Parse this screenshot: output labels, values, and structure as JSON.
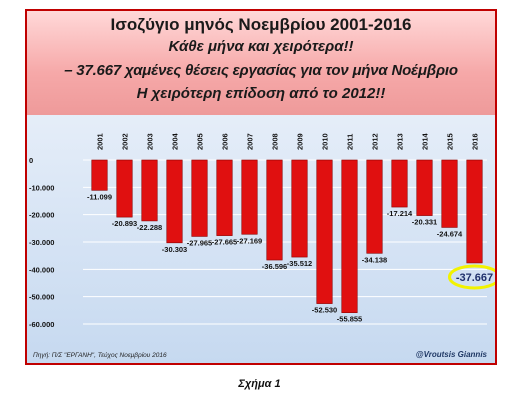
{
  "header": {
    "line1": "Ισοζύγιο μηνός Νοεμβρίου 2001-2016",
    "line2": "Κάθε μήνα και χειρότερα!!",
    "line3": "– 37.667 χαμένες θέσεις εργασίας για τον μήνα Νοέμβριο",
    "line4": "Η χειρότερη επίδοση από το 2012!!"
  },
  "source": "Πηγή: Π/Σ \"ΕΡΓΑΝΗ\", Τεύχος Νοεμβρίου 2016",
  "credit": "@Vroutsis Giannis",
  "caption": "Σχήμα 1",
  "colors": {
    "bar": "#e01010",
    "highlight": "#f2f200",
    "border": "#c00000"
  },
  "chart_data": {
    "type": "bar",
    "categories": [
      "2001",
      "2002",
      "2003",
      "2004",
      "2005",
      "2006",
      "2007",
      "2008",
      "2009",
      "2010",
      "2011",
      "2012",
      "2013",
      "2014",
      "2015",
      "2016"
    ],
    "values": [
      -11099,
      -20893,
      -22288,
      -30303,
      -27965,
      -27665,
      -27169,
      -36596,
      -35512,
      -52530,
      -55855,
      -34138,
      -17214,
      -20331,
      -24674,
      -37667
    ],
    "value_labels": [
      "-11.099",
      "-20.893",
      "-22.288",
      "-30.303",
      "-27.965",
      "-27.665",
      "-27.169",
      "-36.596",
      "-35.512",
      "-52.530",
      "-55.855",
      "-34.138",
      "-17.214",
      "-20.331",
      "-24.674",
      "-37.667"
    ],
    "ylim": [
      -60000,
      0
    ],
    "yticks": [
      0,
      -10000,
      -20000,
      -30000,
      -40000,
      -50000,
      -60000
    ],
    "ytick_labels": [
      "0",
      "-10.000",
      "-20.000",
      "-30.000",
      "-40.000",
      "-50.000",
      "-60.000"
    ],
    "highlighted_category": "2016",
    "grid": true
  }
}
